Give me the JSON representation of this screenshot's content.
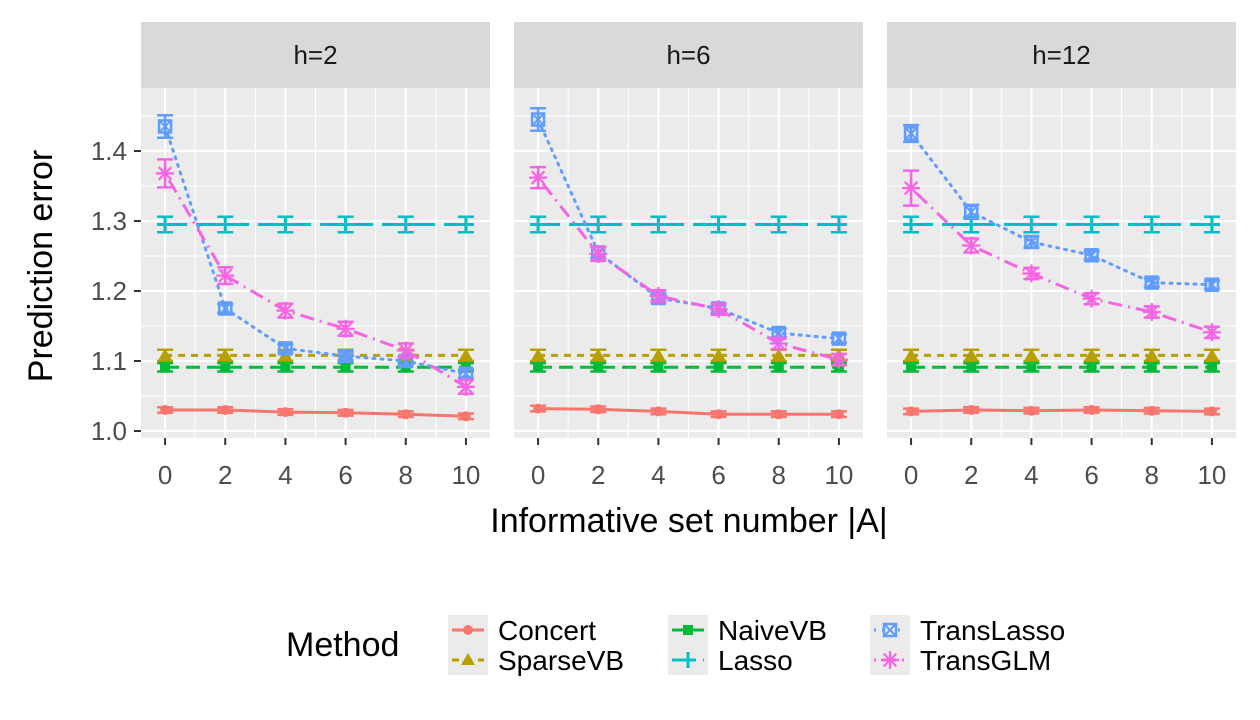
{
  "chart_data": {
    "type": "line",
    "y_axis_title": "Prediction error",
    "x_axis_title": "Informative set number |A|",
    "legend_title": "Method",
    "x_ticks": [
      "0",
      "2",
      "4",
      "6",
      "8",
      "10"
    ],
    "y_ticks": [
      "1.0",
      "1.1",
      "1.2",
      "1.3",
      "1.4"
    ],
    "xlim": [
      -0.8,
      10.8
    ],
    "ylim": [
      0.99,
      1.49
    ],
    "x": [
      0,
      2,
      4,
      6,
      8,
      10
    ],
    "methods": [
      {
        "name": "Concert",
        "color": "#F8766D",
        "linetype": "solid",
        "shape": "circle"
      },
      {
        "name": "SparseVB",
        "color": "#B79F00",
        "linetype": "dotted",
        "shape": "triangle"
      },
      {
        "name": "NaiveVB",
        "color": "#00BA38",
        "linetype": "dashed",
        "shape": "square"
      },
      {
        "name": "Lasso",
        "color": "#00BFC4",
        "linetype": "longdash",
        "shape": "plus"
      },
      {
        "name": "TransLasso",
        "color": "#619CFF",
        "linetype": "dotted2",
        "shape": "boxcross"
      },
      {
        "name": "TransGLM",
        "color": "#F564E3",
        "linetype": "dotdash",
        "shape": "asterisk"
      }
    ],
    "panels": [
      {
        "label": "h=2",
        "series": [
          {
            "name": "Concert",
            "values": [
              1.03,
              1.03,
              1.027,
              1.026,
              1.024,
              1.021
            ],
            "err": [
              0.004,
              0.004,
              0.004,
              0.004,
              0.004,
              0.004
            ]
          },
          {
            "name": "SparseVB",
            "values": [
              1.108,
              1.108,
              1.108,
              1.108,
              1.108,
              1.108
            ],
            "err": [
              0.008,
              0.008,
              0.008,
              0.008,
              0.008,
              0.008
            ]
          },
          {
            "name": "NaiveVB",
            "values": [
              1.091,
              1.091,
              1.091,
              1.091,
              1.091,
              1.091
            ],
            "err": [
              0.006,
              0.006,
              0.006,
              0.006,
              0.006,
              0.006
            ]
          },
          {
            "name": "Lasso",
            "values": [
              1.295,
              1.295,
              1.295,
              1.295,
              1.295,
              1.295
            ],
            "err": [
              0.011,
              0.011,
              0.011,
              0.011,
              0.011,
              0.011
            ]
          },
          {
            "name": "TransLasso",
            "values": [
              1.435,
              1.175,
              1.118,
              1.107,
              1.1,
              1.082
            ],
            "err": [
              0.016,
              0.006,
              0.006,
              0.006,
              0.006,
              0.006
            ]
          },
          {
            "name": "TransGLM",
            "values": [
              1.368,
              1.222,
              1.172,
              1.146,
              1.115,
              1.063
            ],
            "err": [
              0.02,
              0.012,
              0.01,
              0.01,
              0.01,
              0.01
            ]
          }
        ]
      },
      {
        "label": "h=6",
        "series": [
          {
            "name": "Concert",
            "values": [
              1.032,
              1.031,
              1.028,
              1.024,
              1.024,
              1.024
            ],
            "err": [
              0.004,
              0.004,
              0.004,
              0.004,
              0.004,
              0.004
            ]
          },
          {
            "name": "SparseVB",
            "values": [
              1.108,
              1.108,
              1.108,
              1.108,
              1.108,
              1.108
            ],
            "err": [
              0.008,
              0.008,
              0.008,
              0.008,
              0.008,
              0.008
            ]
          },
          {
            "name": "NaiveVB",
            "values": [
              1.091,
              1.091,
              1.091,
              1.091,
              1.091,
              1.091
            ],
            "err": [
              0.006,
              0.006,
              0.006,
              0.006,
              0.006,
              0.006
            ]
          },
          {
            "name": "Lasso",
            "values": [
              1.295,
              1.295,
              1.295,
              1.295,
              1.295,
              1.295
            ],
            "err": [
              0.011,
              0.011,
              0.011,
              0.011,
              0.011,
              0.011
            ]
          },
          {
            "name": "TransLasso",
            "values": [
              1.445,
              1.255,
              1.19,
              1.175,
              1.14,
              1.132
            ],
            "err": [
              0.016,
              0.008,
              0.006,
              0.006,
              0.006,
              0.006
            ]
          },
          {
            "name": "TransGLM",
            "values": [
              1.362,
              1.253,
              1.193,
              1.174,
              1.125,
              1.102
            ],
            "err": [
              0.015,
              0.01,
              0.008,
              0.008,
              0.008,
              0.008
            ]
          }
        ]
      },
      {
        "label": "h=12",
        "series": [
          {
            "name": "Concert",
            "values": [
              1.028,
              1.03,
              1.029,
              1.03,
              1.029,
              1.028
            ],
            "err": [
              0.004,
              0.004,
              0.004,
              0.004,
              0.004,
              0.004
            ]
          },
          {
            "name": "SparseVB",
            "values": [
              1.108,
              1.108,
              1.108,
              1.108,
              1.108,
              1.108
            ],
            "err": [
              0.008,
              0.008,
              0.008,
              0.008,
              0.008,
              0.008
            ]
          },
          {
            "name": "NaiveVB",
            "values": [
              1.091,
              1.091,
              1.091,
              1.091,
              1.091,
              1.091
            ],
            "err": [
              0.006,
              0.006,
              0.006,
              0.006,
              0.006,
              0.006
            ]
          },
          {
            "name": "Lasso",
            "values": [
              1.295,
              1.295,
              1.295,
              1.295,
              1.295,
              1.295
            ],
            "err": [
              0.011,
              0.011,
              0.011,
              0.011,
              0.011,
              0.011
            ]
          },
          {
            "name": "TransLasso",
            "values": [
              1.425,
              1.313,
              1.27,
              1.251,
              1.212,
              1.209
            ],
            "err": [
              0.012,
              0.01,
              0.008,
              0.006,
              0.006,
              0.006
            ]
          },
          {
            "name": "TransGLM",
            "values": [
              1.347,
              1.265,
              1.225,
              1.189,
              1.17,
              1.141
            ],
            "err": [
              0.025,
              0.01,
              0.008,
              0.008,
              0.008,
              0.008
            ]
          }
        ]
      }
    ]
  }
}
